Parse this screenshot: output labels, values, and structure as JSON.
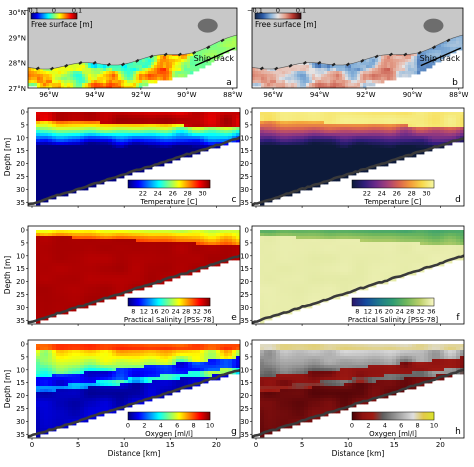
{
  "figure": {
    "panels": [
      {
        "letter": "a",
        "kind": "map",
        "colormap": "jet",
        "cbar_label": "Free surface [m]",
        "cbar_ticks": [
          "−0.1",
          "0",
          "0.1"
        ],
        "track_label": "Ship track"
      },
      {
        "letter": "b",
        "kind": "map",
        "colormap": "balance",
        "cbar_label": "Free surface [m]",
        "cbar_ticks": [
          "−0.1",
          "0",
          "0.1"
        ],
        "track_label": "Ship track"
      },
      {
        "letter": "c",
        "kind": "section",
        "field": "temp",
        "colormap": "jet",
        "cbar_label": "Temperature [C]",
        "cbar_ticks": [
          "22",
          "24",
          "26",
          "28",
          "30"
        ]
      },
      {
        "letter": "d",
        "kind": "section",
        "field": "temp",
        "colormap": "thermal",
        "cbar_label": "Temperature [C]",
        "cbar_ticks": [
          "22",
          "24",
          "26",
          "28",
          "30"
        ]
      },
      {
        "letter": "e",
        "kind": "section",
        "field": "sal",
        "colormap": "jet",
        "cbar_label": "Practical Salinity [PSS-78]",
        "cbar_ticks": [
          "8",
          "12",
          "16",
          "20",
          "24",
          "28",
          "32",
          "36"
        ]
      },
      {
        "letter": "f",
        "kind": "section",
        "field": "sal",
        "colormap": "haline",
        "cbar_label": "Practical Salinity [PSS-78]",
        "cbar_ticks": [
          "8",
          "12",
          "16",
          "20",
          "24",
          "28",
          "32",
          "36"
        ]
      },
      {
        "letter": "g",
        "kind": "section",
        "field": "oxy",
        "colormap": "jet",
        "cbar_label": "Oxygen [ml/l]",
        "cbar_ticks": [
          "0",
          "2",
          "4",
          "6",
          "8",
          "10"
        ]
      },
      {
        "letter": "h",
        "kind": "section",
        "field": "oxy",
        "colormap": "oxy",
        "cbar_label": "Oxygen [ml/l]",
        "cbar_ticks": [
          "0",
          "2",
          "4",
          "6",
          "8",
          "10"
        ]
      }
    ],
    "map_axes": {
      "lat_labels": [
        "30°N",
        "29°N",
        "28°N",
        "27°N"
      ],
      "lon_labels": [
        "96°W",
        "94°W",
        "92°W",
        "90°W",
        "88°W"
      ]
    },
    "section_axes": {
      "ylabel": "Depth [m]",
      "depth_ticks": [
        "0",
        "5",
        "10",
        "15",
        "20",
        "25",
        "30",
        "35"
      ],
      "xlabel": "Distance [km]",
      "distance_ticks": [
        "0",
        "5",
        "10",
        "15",
        "20"
      ]
    },
    "colors": {
      "land": "#c8c8c8",
      "seafloor": "#3a3a3a",
      "frame": "#000000"
    }
  },
  "chart_data": [
    {
      "type": "heatmap",
      "panel": "c",
      "variable": "Temperature",
      "units": "C",
      "x_range_km": [
        0,
        23
      ],
      "depth_range_m": [
        0,
        38
      ],
      "color_range": [
        20,
        31
      ],
      "colorbar_ticks": [
        22,
        24,
        26,
        28,
        30
      ]
    },
    {
      "type": "heatmap",
      "panel": "d",
      "variable": "Temperature",
      "units": "C",
      "x_range_km": [
        0,
        23
      ],
      "depth_range_m": [
        0,
        38
      ],
      "color_range": [
        20,
        31
      ],
      "colorbar_ticks": [
        22,
        24,
        26,
        28,
        30
      ]
    },
    {
      "type": "heatmap",
      "panel": "e",
      "variable": "Practical Salinity",
      "units": "PSS-78",
      "x_range_km": [
        0,
        23
      ],
      "depth_range_m": [
        0,
        38
      ],
      "color_range": [
        6,
        37
      ],
      "colorbar_ticks": [
        8,
        12,
        16,
        20,
        24,
        28,
        32,
        36
      ]
    },
    {
      "type": "heatmap",
      "panel": "f",
      "variable": "Practical Salinity",
      "units": "PSS-78",
      "x_range_km": [
        0,
        23
      ],
      "depth_range_m": [
        0,
        38
      ],
      "color_range": [
        6,
        37
      ],
      "colorbar_ticks": [
        8,
        12,
        16,
        20,
        24,
        28,
        32,
        36
      ]
    },
    {
      "type": "heatmap",
      "panel": "g",
      "variable": "Oxygen",
      "units": "ml/l",
      "x_range_km": [
        0,
        23
      ],
      "depth_range_m": [
        0,
        38
      ],
      "color_range": [
        0,
        10
      ],
      "colorbar_ticks": [
        0,
        2,
        4,
        6,
        8,
        10
      ]
    },
    {
      "type": "heatmap",
      "panel": "h",
      "variable": "Oxygen",
      "units": "ml/l",
      "x_range_km": [
        0,
        23
      ],
      "depth_range_m": [
        0,
        38
      ],
      "color_range": [
        0,
        10
      ],
      "colorbar_ticks": [
        0,
        2,
        4,
        6,
        8,
        10
      ]
    }
  ]
}
